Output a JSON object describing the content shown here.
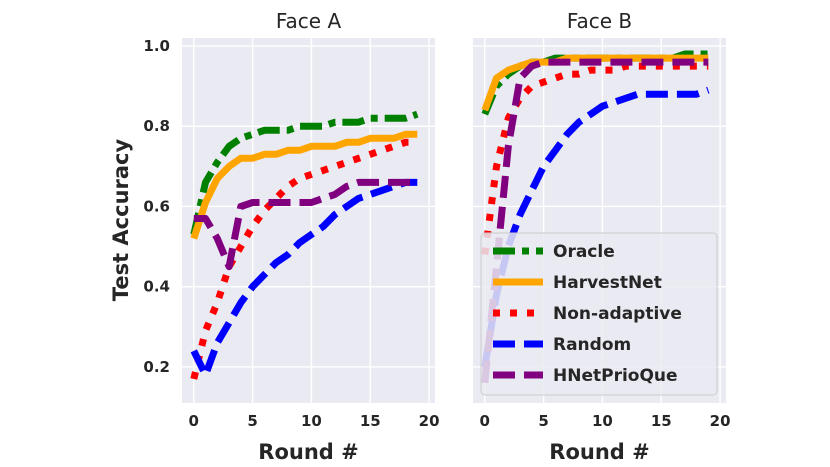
{
  "chart_data": [
    {
      "type": "line",
      "title": "Face A",
      "xlabel": "Round #",
      "ylabel": "Test Accuracy",
      "xlim": [
        -1,
        20.5
      ],
      "ylim": [
        0.11,
        1.02
      ],
      "xticks": [
        0,
        5,
        10,
        15,
        20
      ],
      "yticks": [
        0.2,
        0.4,
        0.6,
        0.8,
        1.0
      ],
      "ytick_labels": [
        "0.2",
        "0.4",
        "0.6",
        "0.8",
        "1.0"
      ],
      "x": [
        0,
        1,
        2,
        3,
        4,
        5,
        6,
        7,
        8,
        9,
        10,
        11,
        12,
        13,
        14,
        15,
        16,
        17,
        18,
        19
      ],
      "series": [
        {
          "name": "Oracle",
          "color": "#008000",
          "style": "dashdot",
          "values": [
            0.53,
            0.66,
            0.71,
            0.75,
            0.77,
            0.78,
            0.79,
            0.79,
            0.79,
            0.8,
            0.8,
            0.8,
            0.81,
            0.81,
            0.81,
            0.82,
            0.82,
            0.82,
            0.82,
            0.83
          ]
        },
        {
          "name": "HarvestNet",
          "color": "#ffa500",
          "style": "solid",
          "values": [
            0.52,
            0.61,
            0.67,
            0.7,
            0.72,
            0.72,
            0.73,
            0.73,
            0.74,
            0.74,
            0.75,
            0.75,
            0.75,
            0.76,
            0.76,
            0.77,
            0.77,
            0.77,
            0.78,
            0.78
          ]
        },
        {
          "name": "Non-adaptive",
          "color": "#ff0000",
          "style": "dotted",
          "values": [
            0.17,
            0.29,
            0.36,
            0.45,
            0.5,
            0.55,
            0.59,
            0.62,
            0.65,
            0.67,
            0.68,
            0.69,
            0.7,
            0.71,
            0.72,
            0.73,
            0.74,
            0.75,
            0.76,
            0.76
          ]
        },
        {
          "name": "Random",
          "color": "#0000ff",
          "style": "dashed",
          "values": [
            0.24,
            0.18,
            0.26,
            0.31,
            0.36,
            0.4,
            0.43,
            0.46,
            0.48,
            0.51,
            0.53,
            0.55,
            0.58,
            0.6,
            0.62,
            0.63,
            0.64,
            0.65,
            0.66,
            0.66
          ]
        },
        {
          "name": "HNetPrioQue",
          "color": "#800080",
          "style": "dashed",
          "values": [
            0.57,
            0.57,
            0.52,
            0.45,
            0.6,
            0.61,
            0.61,
            0.61,
            0.61,
            0.61,
            0.61,
            0.62,
            0.63,
            0.65,
            0.66,
            0.66,
            0.66,
            0.66,
            0.66,
            0.66
          ]
        }
      ]
    },
    {
      "type": "line",
      "title": "Face B",
      "xlabel": "Round #",
      "ylabel": "",
      "xlim": [
        -1,
        20.5
      ],
      "ylim": [
        0.11,
        1.02
      ],
      "xticks": [
        0,
        5,
        10,
        15,
        20
      ],
      "yticks": [
        0.2,
        0.4,
        0.6,
        0.8,
        1.0
      ],
      "x": [
        0,
        1,
        2,
        3,
        4,
        5,
        6,
        7,
        8,
        9,
        10,
        11,
        12,
        13,
        14,
        15,
        16,
        17,
        18,
        19
      ],
      "series": [
        {
          "name": "Oracle",
          "color": "#008000",
          "style": "dashdot",
          "values": [
            0.83,
            0.9,
            0.93,
            0.95,
            0.96,
            0.96,
            0.97,
            0.97,
            0.97,
            0.97,
            0.97,
            0.97,
            0.97,
            0.97,
            0.97,
            0.97,
            0.97,
            0.98,
            0.98,
            0.98
          ]
        },
        {
          "name": "HarvestNet",
          "color": "#ffa500",
          "style": "solid",
          "values": [
            0.84,
            0.92,
            0.94,
            0.95,
            0.96,
            0.96,
            0.96,
            0.97,
            0.97,
            0.97,
            0.97,
            0.97,
            0.97,
            0.97,
            0.97,
            0.97,
            0.97,
            0.97,
            0.97,
            0.97
          ]
        },
        {
          "name": "Non-adaptive",
          "color": "#ff0000",
          "style": "dotted",
          "values": [
            0.48,
            0.7,
            0.82,
            0.87,
            0.9,
            0.91,
            0.92,
            0.93,
            0.93,
            0.94,
            0.94,
            0.94,
            0.95,
            0.95,
            0.95,
            0.95,
            0.95,
            0.95,
            0.95,
            0.95
          ]
        },
        {
          "name": "Random",
          "color": "#0000ff",
          "style": "dashed",
          "values": [
            0.2,
            0.38,
            0.5,
            0.58,
            0.64,
            0.7,
            0.74,
            0.78,
            0.81,
            0.83,
            0.85,
            0.86,
            0.87,
            0.88,
            0.88,
            0.88,
            0.88,
            0.88,
            0.88,
            0.89
          ]
        },
        {
          "name": "HNetPrioQue",
          "color": "#800080",
          "style": "dashed",
          "values": [
            0.16,
            0.45,
            0.75,
            0.92,
            0.95,
            0.96,
            0.96,
            0.96,
            0.96,
            0.96,
            0.96,
            0.96,
            0.96,
            0.96,
            0.96,
            0.96,
            0.96,
            0.96,
            0.96,
            0.96
          ]
        }
      ]
    }
  ],
  "legend": {
    "placement": "lower-right of Face B",
    "entries": [
      "Oracle",
      "HarvestNet",
      "Non-adaptive",
      "Random",
      "HNetPrioQue"
    ]
  }
}
